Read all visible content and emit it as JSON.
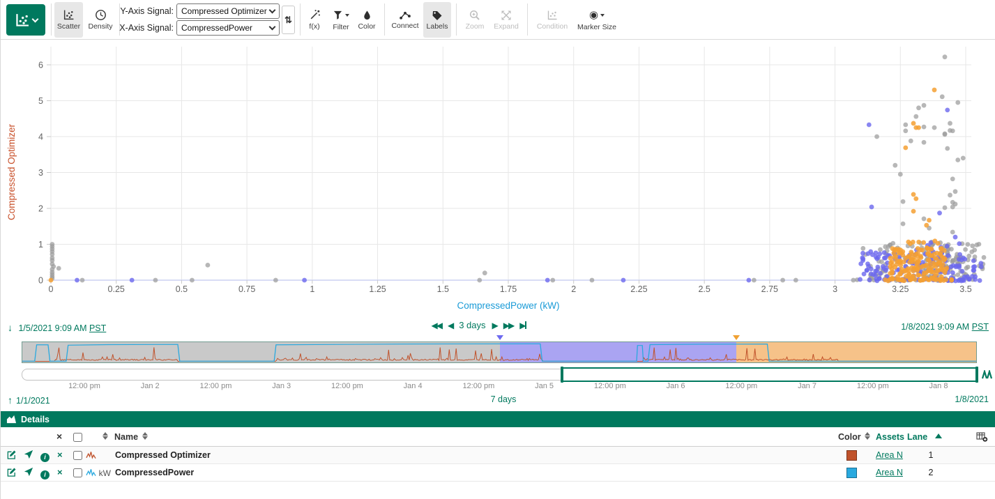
{
  "ui": {
    "accent": "#00795E",
    "toolbar": {
      "view": {
        "scatter": "Scatter",
        "density": "Density"
      },
      "y_axis_label": "Y-Axis Signal:",
      "y_axis_value": "Compressed Optimizer",
      "x_axis_label": "X-Axis Signal:",
      "x_axis_value": "CompressedPower",
      "tools": {
        "fx": "f(x)",
        "filter": "Filter",
        "color": "Color",
        "connect": "Connect",
        "labels": "Labels",
        "zoom": "Zoom",
        "expand": "Expand",
        "condition": "Condition",
        "marker_size": "Marker Size"
      }
    },
    "timebar": {
      "start": "1/5/2021 9:09 AM",
      "start_tz": "PST",
      "end": "1/8/2021 9:09 AM",
      "end_tz": "PST",
      "step_label": "3 days",
      "axis_ticks": [
        "12:00 pm",
        "Jan 2",
        "12:00 pm",
        "Jan 3",
        "12:00 pm",
        "Jan 4",
        "12:00 pm",
        "Jan 5",
        "12:00 pm",
        "Jan 6",
        "12:00 pm",
        "Jan 7",
        "12:00 pm",
        "Jan 8"
      ],
      "range_start": "1/1/2021",
      "range_duration": "7 days",
      "range_end": "1/8/2021",
      "regions": [
        {
          "color": "#c9c9c9",
          "from": 0,
          "to": 0.501
        },
        {
          "color": "#aaa4f2",
          "from": 0.501,
          "to": 0.7485
        },
        {
          "color": "#f6c289",
          "from": 0.7485,
          "to": 1
        }
      ],
      "markers": [
        {
          "color": "#6d6af0",
          "pos": 0.501
        },
        {
          "color": "#f0a132",
          "pos": 0.7485
        }
      ],
      "selection": {
        "from": 0.566,
        "to": 1.0
      },
      "strip": {
        "blue_color": "#2aa9df",
        "orange_color": "#c0522b",
        "blue_line": [
          [
            0,
            0.94
          ],
          [
            0.013,
            0.94
          ],
          [
            0.015,
            0.13
          ],
          [
            0.027,
            0.13
          ],
          [
            0.029,
            0.94
          ],
          [
            0.046,
            0.94
          ],
          [
            0.048,
            0.15
          ],
          [
            0.09,
            0.12
          ],
          [
            0.163,
            0.11
          ],
          [
            0.165,
            0.94
          ],
          [
            0.264,
            0.94
          ],
          [
            0.266,
            0.13
          ],
          [
            0.4,
            0.09
          ],
          [
            0.543,
            0.08
          ],
          [
            0.545,
            0.94
          ],
          [
            0.644,
            0.94
          ],
          [
            0.645,
            0.16
          ],
          [
            0.65,
            0.16
          ],
          [
            0.651,
            0.94
          ],
          [
            0.656,
            0.94
          ],
          [
            0.658,
            0.12
          ],
          [
            0.71,
            0.1
          ],
          [
            0.781,
            0.09
          ],
          [
            0.783,
            0.94
          ],
          [
            1,
            0.94
          ]
        ],
        "orange_windows": [
          [
            0.034,
            0.163
          ],
          [
            0.266,
            0.545
          ],
          [
            0.651,
            0.855
          ]
        ]
      }
    },
    "details": {
      "title": "Details",
      "header": {
        "name": "Name",
        "color": "Color",
        "assets": "Assets",
        "lane": "Lane"
      },
      "rows": [
        {
          "name": "Compressed Optimizer",
          "unit": "",
          "swatch": "#c0522b",
          "wave": "#c0522b",
          "asset": "Area N",
          "lane": "1"
        },
        {
          "name": "CompressedPower",
          "unit": "kW",
          "swatch": "#29a9df",
          "wave": "#2aa9df",
          "asset": "Area N",
          "lane": "2"
        }
      ]
    }
  },
  "chart_data": {
    "type": "scatter",
    "xlabel": "CompressedPower (kW)",
    "ylabel": "Compressed Optimizer",
    "xlim": [
      0,
      3.5
    ],
    "ylim": [
      0,
      6
    ],
    "x_ticks": [
      0,
      0.25,
      0.5,
      0.75,
      1,
      1.25,
      1.5,
      1.75,
      2,
      2.25,
      2.5,
      2.75,
      3,
      3.25,
      3.5
    ],
    "x_tick_labels": [
      "0",
      "0.25",
      "0.5",
      "0.75",
      "1",
      "1.25",
      "1.5",
      "1.75",
      "2",
      "2.25",
      "2.5",
      "2.75",
      "3",
      "3.25",
      "3.5"
    ],
    "y_ticks": [
      0,
      1,
      2,
      3,
      4,
      5,
      6
    ],
    "grid": true,
    "legend": false,
    "colors": {
      "gray": "#9b9b9b",
      "blue": "#6b68ee",
      "orange": "#f5a033"
    },
    "series": [
      {
        "name": "uncolored-samples",
        "color_key": "gray",
        "points": [
          [
            0.005,
            1.0
          ],
          [
            0.005,
            0.94
          ],
          [
            0.005,
            0.87
          ],
          [
            0.005,
            0.8
          ],
          [
            0.005,
            0.72
          ],
          [
            0.005,
            0.62
          ],
          [
            0.005,
            0.55
          ],
          [
            0.005,
            0.45
          ],
          [
            0.01,
            0.38
          ],
          [
            0.005,
            0.3
          ],
          [
            0.03,
            0.33
          ],
          [
            0.005,
            0.22
          ],
          [
            0.005,
            0.16
          ],
          [
            0.005,
            0.1
          ],
          [
            0.005,
            0.05
          ],
          [
            0.12,
            0
          ],
          [
            0.4,
            0
          ],
          [
            0.54,
            0
          ],
          [
            0.86,
            0
          ],
          [
            1.64,
            0
          ],
          [
            1.92,
            0
          ],
          [
            2.07,
            0
          ],
          [
            2.69,
            0
          ],
          [
            2.8,
            0
          ],
          [
            2.85,
            0
          ],
          [
            3.07,
            0
          ],
          [
            0.6,
            0.42
          ],
          [
            1.66,
            0.2
          ],
          [
            3.42,
            6.22
          ],
          [
            3.41,
            5.11
          ],
          [
            3.47,
            4.95
          ],
          [
            3.32,
            4.8
          ],
          [
            3.34,
            4.87
          ],
          [
            3.31,
            4.56
          ],
          [
            3.27,
            4.33
          ],
          [
            3.27,
            4.16
          ],
          [
            3.34,
            4.27
          ],
          [
            3.38,
            4.25
          ],
          [
            3.42,
            4.08
          ],
          [
            3.42,
            4.06
          ],
          [
            3.44,
            4.37
          ],
          [
            3.44,
            4.17
          ],
          [
            3.45,
            4.16
          ],
          [
            3.16,
            4.0
          ],
          [
            3.29,
            3.88
          ],
          [
            3.34,
            3.84
          ],
          [
            3.43,
            3.67
          ],
          [
            3.23,
            3.2
          ],
          [
            3.25,
            2.95
          ],
          [
            3.45,
            2.82
          ],
          [
            3.26,
            2.19
          ],
          [
            3.46,
            2.47
          ],
          [
            3.44,
            2.37
          ],
          [
            3.45,
            2.17
          ],
          [
            3.46,
            2.12
          ],
          [
            3.42,
            2.02
          ],
          [
            3.45,
            2.04
          ],
          [
            3.34,
            1.71
          ],
          [
            3.26,
            1.57
          ],
          [
            3.45,
            1.34
          ],
          [
            3.36,
            1.45
          ],
          [
            3.49,
            3.4
          ],
          [
            3.47,
            3.35
          ]
        ]
      },
      {
        "name": "condition-purple",
        "color_key": "blue",
        "points": [
          [
            0.1,
            0
          ],
          [
            0.31,
            0
          ],
          [
            0.97,
            0
          ],
          [
            1.9,
            0
          ],
          [
            2.19,
            0
          ],
          [
            2.67,
            0
          ],
          [
            3.43,
            4.74
          ],
          [
            3.13,
            4.33
          ],
          [
            3.14,
            2.04
          ],
          [
            3.4,
            1.87
          ],
          [
            3.46,
            1.2
          ]
        ]
      },
      {
        "name": "condition-orange",
        "color_key": "orange",
        "points": [
          [
            0,
            0
          ],
          [
            3.38,
            5.3
          ],
          [
            3.3,
            4.37
          ],
          [
            3.31,
            4.25
          ],
          [
            3.32,
            4.25
          ],
          [
            3.27,
            3.69
          ],
          [
            3.31,
            2.27
          ],
          [
            3.3,
            2.39
          ],
          [
            3.3,
            1.92
          ],
          [
            3.36,
            1.67
          ],
          [
            3.35,
            1.53
          ]
        ]
      }
    ],
    "dense_clusters": [
      {
        "color_key": "gray",
        "n": 85,
        "x": [
          3.33,
          3.57
        ],
        "y": [
          0.02,
          1.02
        ],
        "seed": 11
      },
      {
        "color_key": "gray",
        "n": 30,
        "x": [
          3.1,
          3.34
        ],
        "y": [
          0.05,
          0.95
        ],
        "seed": 12
      },
      {
        "color_key": "gray",
        "n": 14,
        "x": [
          3.18,
          3.52
        ],
        "y": [
          0.93,
          1.08
        ],
        "seed": 13
      },
      {
        "color_key": "gray",
        "n": 10,
        "x": [
          3.05,
          3.56
        ],
        "y": [
          -0.01,
          0.02
        ],
        "seed": 14
      },
      {
        "color_key": "blue",
        "n": 50,
        "x": [
          3.09,
          3.26
        ],
        "y": [
          0.0,
          0.82
        ],
        "seed": 21
      },
      {
        "color_key": "blue",
        "n": 80,
        "x": [
          3.27,
          3.56
        ],
        "y": [
          0.0,
          0.88
        ],
        "seed": 22
      },
      {
        "color_key": "blue",
        "n": 30,
        "x": [
          3.12,
          3.56
        ],
        "y": [
          -0.02,
          0.03
        ],
        "seed": 23
      },
      {
        "color_key": "blue",
        "n": 6,
        "x": [
          3.3,
          3.5
        ],
        "y": [
          0.9,
          1.05
        ],
        "seed": 24
      },
      {
        "color_key": "orange",
        "n": 150,
        "x": [
          3.21,
          3.43
        ],
        "y": [
          0.02,
          0.9
        ],
        "seed": 31
      },
      {
        "color_key": "orange",
        "n": 28,
        "x": [
          3.19,
          3.45
        ],
        "y": [
          -0.02,
          0.03
        ],
        "seed": 32
      },
      {
        "color_key": "orange",
        "n": 8,
        "x": [
          3.24,
          3.42
        ],
        "y": [
          0.9,
          1.1
        ],
        "seed": 33
      }
    ]
  }
}
